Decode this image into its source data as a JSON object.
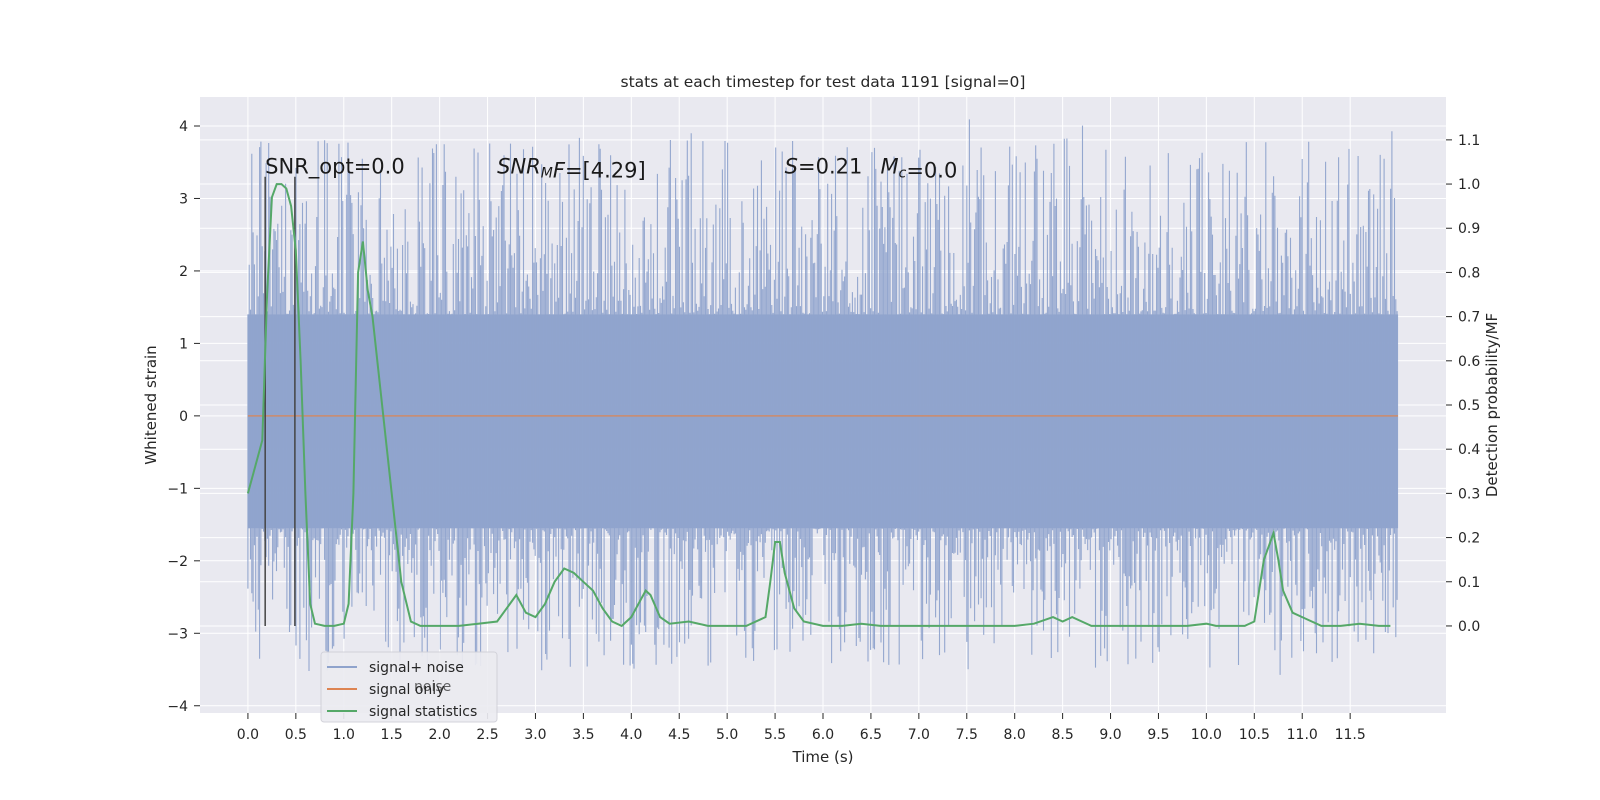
{
  "chart_data": {
    "type": "line",
    "title": "stats at each timestep for test data 1191 [signal=0]",
    "xlabel": "Time (s)",
    "ylabel": "Whitened strain",
    "y2label": "Detection probability/MF",
    "xlim": [
      -0.5,
      12.5
    ],
    "ylim": [
      -4.1,
      4.4
    ],
    "y2lim": [
      -0.197,
      1.197
    ],
    "xticks": [
      0.0,
      0.5,
      1.0,
      1.5,
      2.0,
      2.5,
      3.0,
      3.5,
      4.0,
      4.5,
      5.0,
      5.5,
      6.0,
      6.5,
      7.0,
      7.5,
      8.0,
      8.5,
      9.0,
      9.5,
      10.0,
      10.5,
      11.0,
      11.5
    ],
    "xtick_labels": [
      "0.0",
      "0.5",
      "1.0",
      "1.5",
      "2.0",
      "2.5",
      "3.0",
      "3.5",
      "4.0",
      "4.5",
      "5.0",
      "5.5",
      "6.0",
      "6.5",
      "7.0",
      "7.5",
      "8.0",
      "8.5",
      "9.0",
      "9.5",
      "10.0",
      "10.5",
      "11.0",
      "11.5"
    ],
    "yticks": [
      -4,
      -3,
      -2,
      -1,
      0,
      1,
      2,
      3,
      4
    ],
    "ytick_labels": [
      "−4",
      "−3",
      "−2",
      "−1",
      "0",
      "1",
      "2",
      "3",
      "4"
    ],
    "y2ticks": [
      0.0,
      0.1,
      0.2,
      0.3,
      0.4,
      0.5,
      0.6,
      0.7,
      0.8,
      0.9,
      1.0,
      1.1
    ],
    "y2tick_labels": [
      "0.0",
      "0.1",
      "0.2",
      "0.3",
      "0.4",
      "0.5",
      "0.6",
      "0.7",
      "0.8",
      "0.9",
      "1.0",
      "1.1"
    ],
    "grid": true,
    "legend_position": "lower-left",
    "series": [
      {
        "name": "signal+ noise",
        "color": "#8fa3cc",
        "axis": "left",
        "x_range": [
          0.0,
          12.0
        ],
        "envelope": {
          "dense_band": [
            -1.55,
            1.4
          ],
          "peaks_up_max": 4.1,
          "peaks_down_min": -3.75
        }
      },
      {
        "name": "signal only",
        "color": "#dd8452",
        "axis": "left",
        "x": [
          0.0,
          12.0
        ],
        "y": [
          0.0,
          0.0
        ]
      },
      {
        "name": "signal statistics",
        "color": "#55a868",
        "axis": "right",
        "x": [
          0.0,
          0.15,
          0.2,
          0.25,
          0.3,
          0.35,
          0.4,
          0.45,
          0.5,
          0.55,
          0.6,
          0.65,
          0.7,
          0.8,
          0.9,
          1.0,
          1.05,
          1.1,
          1.15,
          1.2,
          1.25,
          1.3,
          1.4,
          1.5,
          1.6,
          1.7,
          1.8,
          2.0,
          2.2,
          2.4,
          2.6,
          2.7,
          2.8,
          2.9,
          3.0,
          3.1,
          3.2,
          3.3,
          3.4,
          3.5,
          3.6,
          3.7,
          3.8,
          3.9,
          4.0,
          4.1,
          4.15,
          4.2,
          4.3,
          4.4,
          4.6,
          4.8,
          5.0,
          5.2,
          5.4,
          5.45,
          5.5,
          5.55,
          5.6,
          5.7,
          5.8,
          6.0,
          6.2,
          6.4,
          6.6,
          6.8,
          7.0,
          7.2,
          7.4,
          7.6,
          7.8,
          8.0,
          8.2,
          8.4,
          8.5,
          8.6,
          8.7,
          8.8,
          9.0,
          9.2,
          9.4,
          9.6,
          9.8,
          10.0,
          10.1,
          10.2,
          10.4,
          10.5,
          10.55,
          10.6,
          10.7,
          10.75,
          10.8,
          10.9,
          11.0,
          11.2,
          11.4,
          11.6,
          11.8,
          11.92
        ],
        "y": [
          0.3,
          0.42,
          0.75,
          0.97,
          1.0,
          1.0,
          0.99,
          0.95,
          0.85,
          0.6,
          0.3,
          0.05,
          0.005,
          0.0,
          0.0,
          0.005,
          0.05,
          0.3,
          0.8,
          0.87,
          0.76,
          0.7,
          0.5,
          0.3,
          0.1,
          0.01,
          0.0,
          0.0,
          0.0,
          0.005,
          0.01,
          0.04,
          0.07,
          0.03,
          0.02,
          0.05,
          0.1,
          0.13,
          0.12,
          0.1,
          0.08,
          0.04,
          0.01,
          0.0,
          0.02,
          0.06,
          0.08,
          0.07,
          0.02,
          0.005,
          0.01,
          0.0,
          0.0,
          0.0,
          0.02,
          0.1,
          0.19,
          0.19,
          0.12,
          0.04,
          0.01,
          0.0,
          0.0,
          0.005,
          0.0,
          0.0,
          0.0,
          0.0,
          0.0,
          0.0,
          0.0,
          0.0,
          0.005,
          0.02,
          0.01,
          0.02,
          0.01,
          0.0,
          0.0,
          0.0,
          0.0,
          0.0,
          0.0,
          0.005,
          0.0,
          0.0,
          0.0,
          0.01,
          0.08,
          0.15,
          0.21,
          0.15,
          0.08,
          0.03,
          0.02,
          0.0,
          0.0,
          0.005,
          0.0,
          0.0
        ]
      }
    ],
    "vertical_markers": [
      {
        "x": 0.18,
        "y_range": [
          -2.9,
          3.3
        ],
        "color": "#444444"
      },
      {
        "x": 0.49,
        "y_range": [
          -2.9,
          3.3
        ],
        "color": "#444444"
      }
    ],
    "annotations": [
      {
        "id": "snr-opt",
        "x": 0.18,
        "y": 3.3,
        "parts": [
          {
            "t": "SNR_opt=0.0"
          }
        ]
      },
      {
        "id": "snr-mf",
        "x": 2.6,
        "y": 3.3,
        "parts": [
          {
            "t": "SNR",
            "i": true
          },
          {
            "t": "M",
            "i": true,
            "sub": true
          },
          {
            "t": "F",
            "i": true
          },
          {
            "t": "=[4.29]"
          }
        ]
      },
      {
        "id": "s-value",
        "x": 5.6,
        "y": 3.3,
        "parts": [
          {
            "t": "S",
            "i": true
          },
          {
            "t": "=0.21"
          }
        ]
      },
      {
        "id": "mc-value",
        "x": 6.6,
        "y": 3.3,
        "parts": [
          {
            "t": "M",
            "i": true
          },
          {
            "t": "c",
            "i": true,
            "sub": true
          },
          {
            "t": "=0.0"
          }
        ]
      }
    ],
    "hidden_legend_fragment": "noise"
  }
}
